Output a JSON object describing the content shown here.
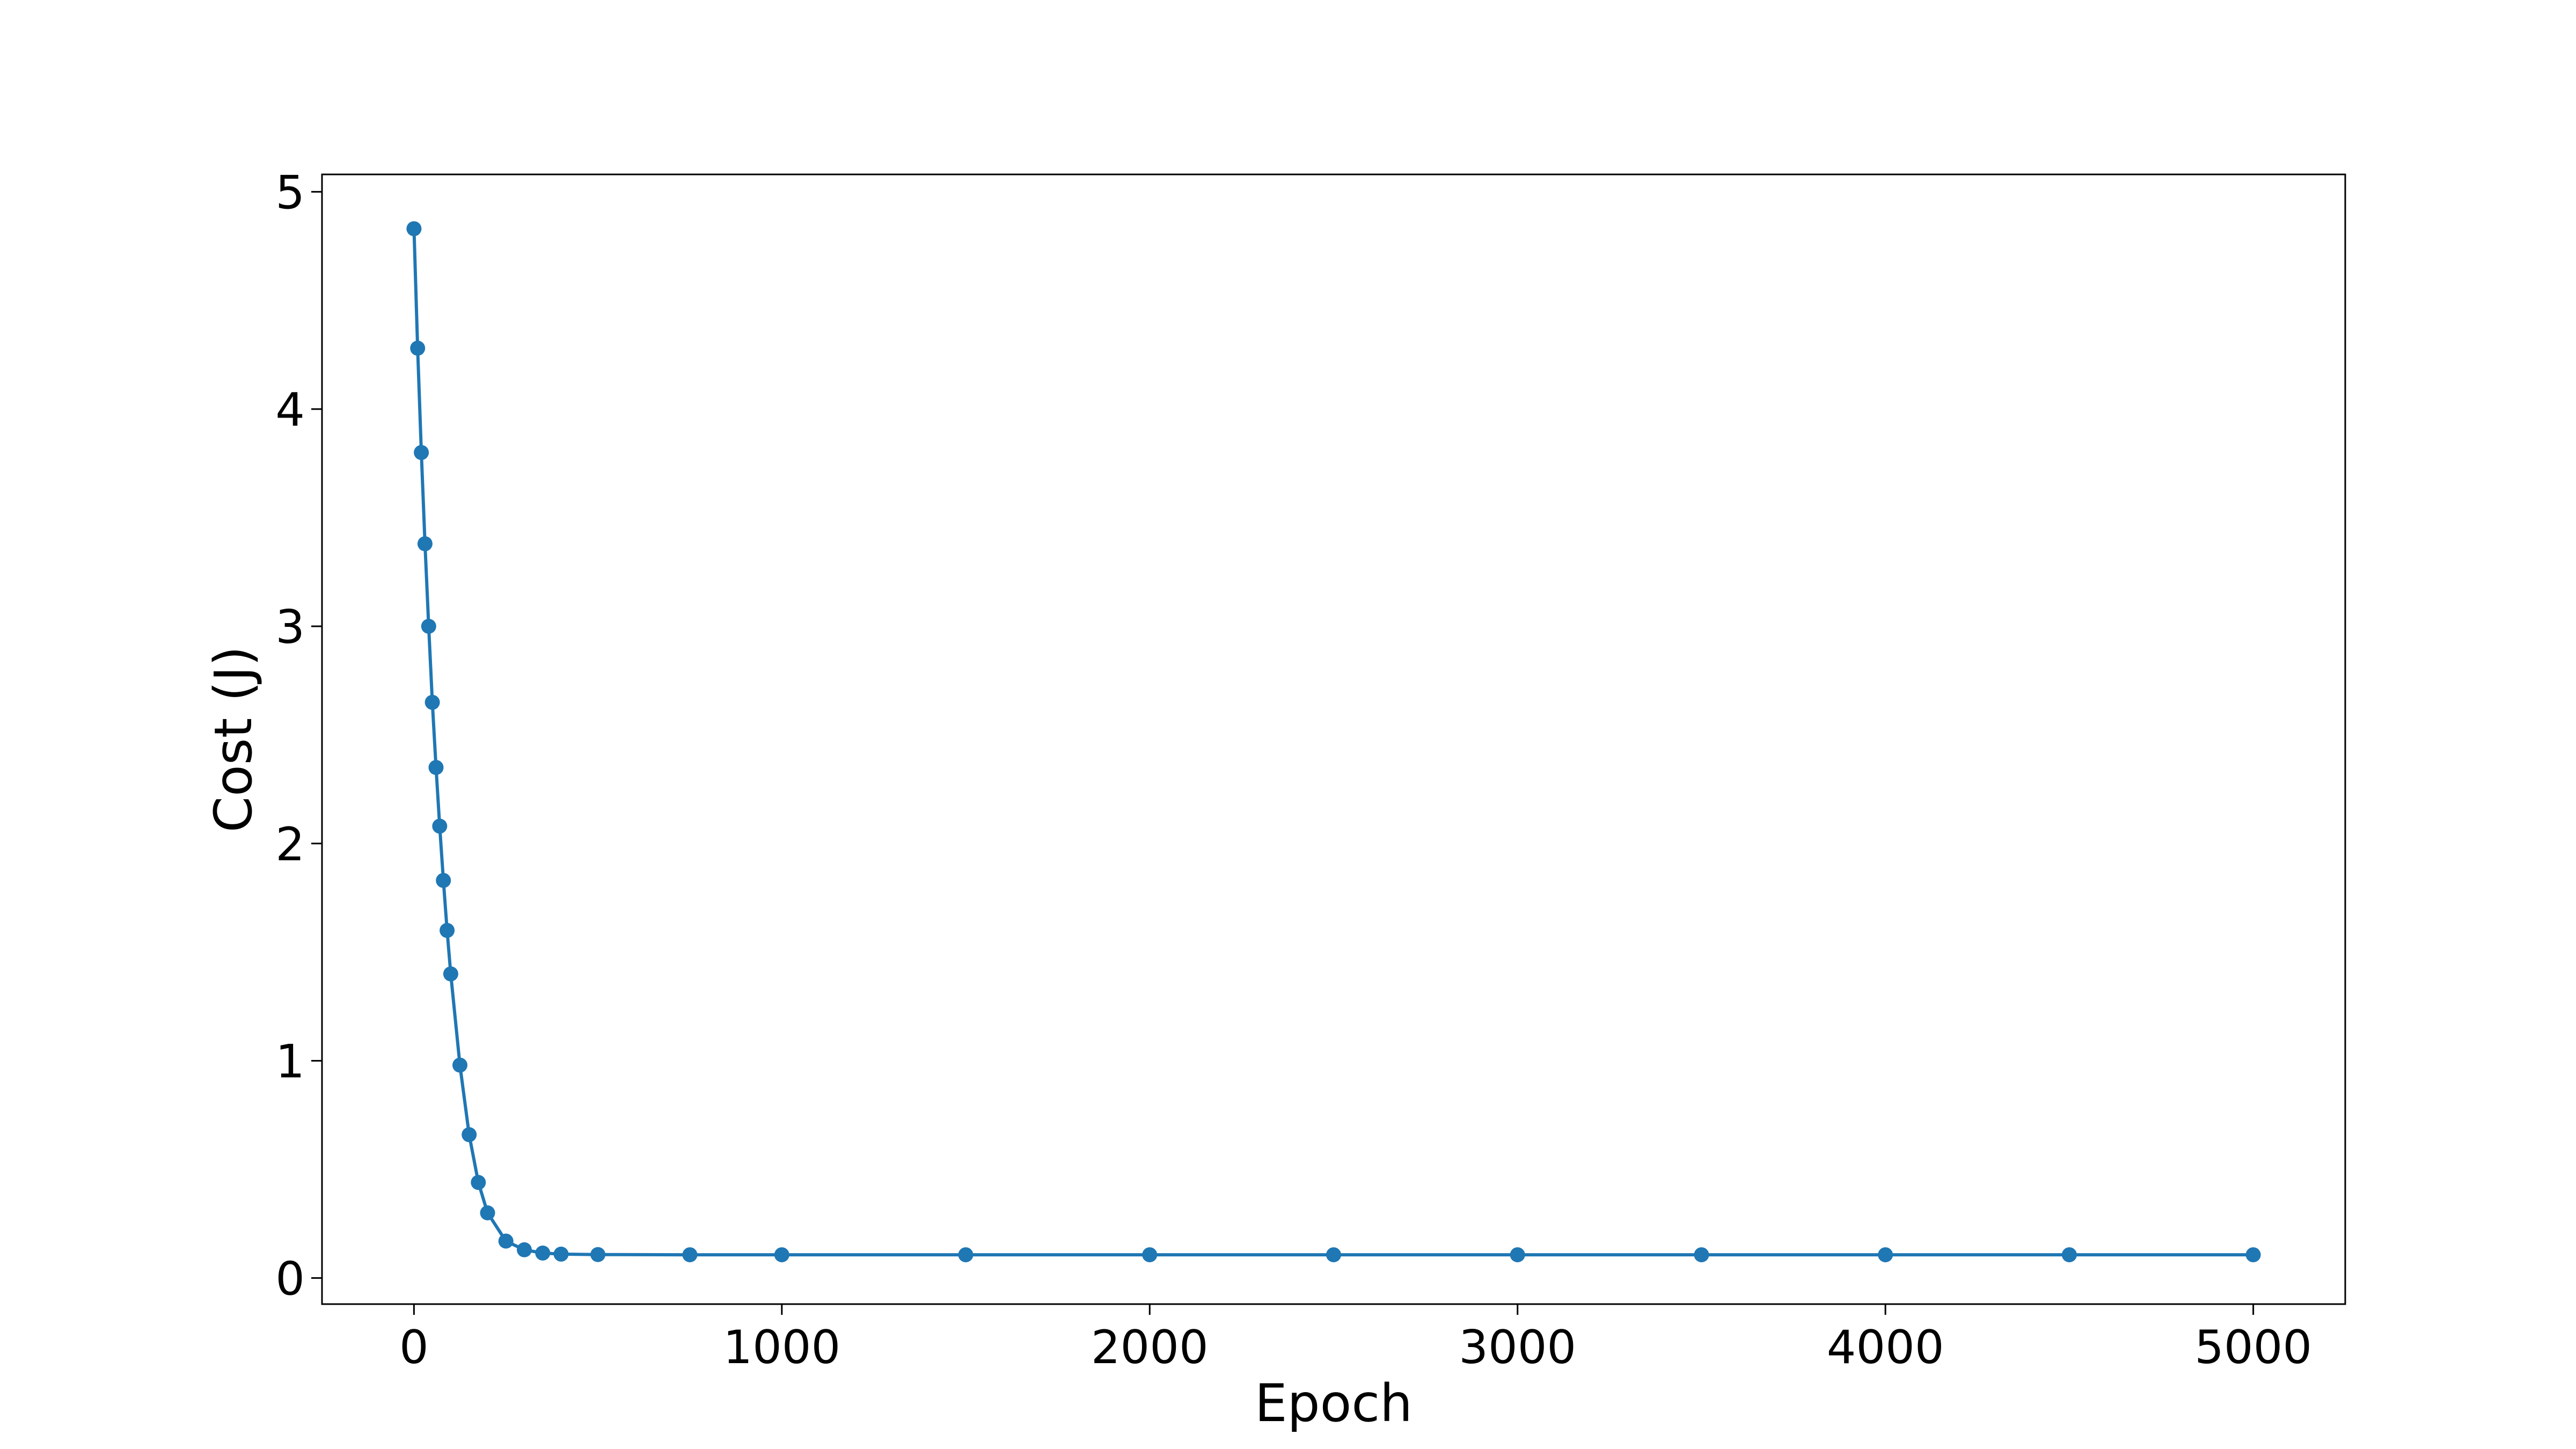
{
  "chart_data": {
    "type": "line",
    "title": "",
    "xlabel": "Epoch",
    "ylabel": "Cost (J)",
    "xlim": [
      -250,
      5250
    ],
    "ylim": [
      -0.12,
      5.08
    ],
    "xticks": [
      0,
      1000,
      2000,
      3000,
      4000,
      5000
    ],
    "xtick_labels": [
      "0",
      "1000",
      "2000",
      "3000",
      "4000",
      "5000"
    ],
    "yticks": [
      0,
      1,
      2,
      3,
      4,
      5
    ],
    "ytick_labels": [
      "0",
      "1",
      "2",
      "3",
      "4",
      "5"
    ],
    "grid": false,
    "legend": "none",
    "marker": "circle",
    "series": [
      {
        "color": "#1f77b4",
        "x": [
          0,
          10,
          20,
          30,
          40,
          50,
          60,
          70,
          80,
          90,
          100,
          125,
          150,
          175,
          200,
          250,
          300,
          350,
          400,
          500,
          750,
          1000,
          1500,
          2000,
          2500,
          3000,
          3500,
          4000,
          4500,
          5000
        ],
        "y": [
          4.83,
          4.28,
          3.8,
          3.38,
          3.0,
          2.65,
          2.35,
          2.08,
          1.83,
          1.6,
          1.4,
          0.98,
          0.66,
          0.44,
          0.3,
          0.17,
          0.13,
          0.115,
          0.11,
          0.108,
          0.107,
          0.107,
          0.107,
          0.107,
          0.107,
          0.107,
          0.107,
          0.107,
          0.107,
          0.107
        ]
      }
    ]
  }
}
